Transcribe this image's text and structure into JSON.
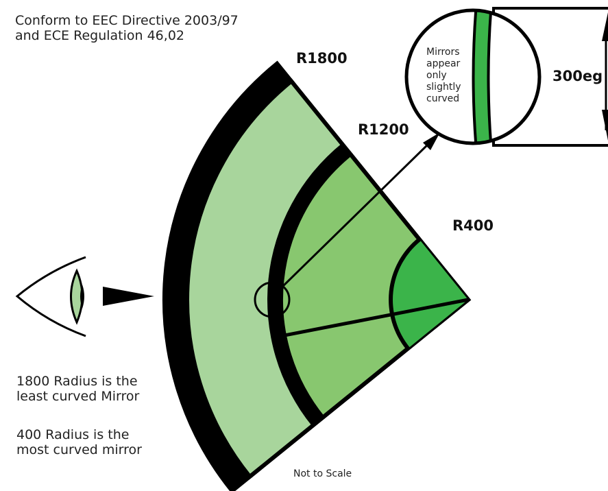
{
  "header": {
    "lines": [
      "Conform to EEC Directive 2003/97",
      "and ECE Regulation 46,02"
    ]
  },
  "radii": {
    "outer": "R1800",
    "middle": "R1200",
    "inner": "R400"
  },
  "magnifier": {
    "caption": [
      "Mirrors",
      "appear",
      "only",
      "slightly",
      "curved"
    ],
    "width_label": "300eg"
  },
  "notes": [
    [
      "1800 Radius is the",
      "least curved Mirror"
    ],
    [
      "400 Radius is the",
      "most curved mirror"
    ]
  ],
  "footer": "Not to Scale"
}
